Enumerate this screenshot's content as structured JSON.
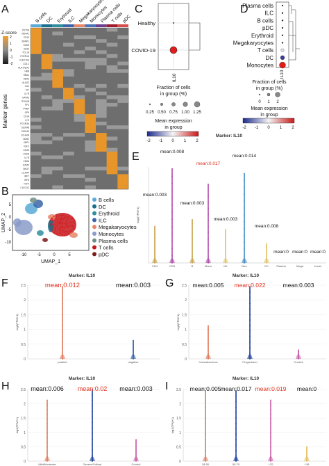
{
  "panels": {
    "A": {
      "letter": "A",
      "col_labels": [
        "B cells",
        "DC",
        "Erythroid",
        "ILC",
        "Megakaryocytes",
        "Monocytes",
        "Plasma cells",
        "T cells",
        "pDC"
      ],
      "col_colors": [
        "#5aa9d6",
        "#1a6f8c",
        "#2e8f9e",
        "#3b65a8",
        "#e8866a",
        "#4a74b8",
        "#6f3f8f",
        "#a01c2c",
        "#d94c4c"
      ],
      "zscore_label": "Z-score",
      "zscore_ticks": [
        "2",
        "1",
        "0",
        "-1",
        "-2"
      ],
      "row_axis_label": "Marker genes",
      "gene_labels": [
        "CD79A",
        "MS4A1",
        "CD19",
        "BANK1",
        "IGHM",
        "CD22",
        "TCL1A",
        "FCER1A",
        "CLEC10A",
        "CD1C",
        "HLA-DQA1",
        "HBB",
        "HBA1",
        "HBA2",
        "ALAS2",
        "CA1",
        "KIT",
        "IL7R",
        "GATA3",
        "ITGA2B",
        "PF4",
        "PPBP",
        "GP9",
        "CD14",
        "LYZ",
        "FCGR3A",
        "S100A8",
        "S100A9",
        "JCHAIN",
        "MZB1",
        "XBP1",
        "IGKC",
        "CD3E",
        "CD3D",
        "IL7R",
        "CD8A",
        "GZMK",
        "NKG7",
        "LILRA4",
        "IRF7",
        "IRF8",
        "TCF4",
        "CLEC4C"
      ]
    },
    "B": {
      "letter": "B",
      "legend": [
        "B cells",
        "DC",
        "Erythroid",
        "ILC",
        "Megakaryocytes",
        "Monocytes",
        "Plasma cells",
        "T cells",
        "pDC"
      ],
      "legend_colors": [
        "#5aa9d6",
        "#1a6f8c",
        "#2e8f9e",
        "#3b65a8",
        "#e8866a",
        "#8a9bc8",
        "#6f8f86",
        "#c6161c",
        "#7c1a1a"
      ],
      "xlabel": "UMAP_1",
      "ylabel": "UMAP_2",
      "xticks": [
        "-10",
        "-5",
        "0",
        "5"
      ],
      "yticks": [
        "5",
        "0",
        "-5",
        "-10"
      ]
    },
    "C": {
      "letter": "C",
      "rows": [
        "Healthy",
        "COVID-19"
      ],
      "gene": "IL10",
      "size_title": "Fraction of cells\nin group (%)",
      "size_ticks": [
        "0.25",
        "0.50",
        "0.75",
        "1.00",
        "1.25"
      ],
      "color_title": "Mean expression\nin group",
      "color_ticks": [
        "-2",
        "-1",
        "0",
        "1",
        "2"
      ]
    },
    "D": {
      "letter": "D",
      "rows": [
        "Plasma cells",
        "ILC",
        "B cells",
        "pDC",
        "Erythroid",
        "Megakaryocytes",
        "T cells",
        "DC",
        "Monocytes"
      ],
      "gene": "IL10",
      "size_title": "Fraction of cells\nin group (%)",
      "size_ticks": [
        "0",
        "1",
        "2"
      ],
      "color_title": "Mean expression\nin group",
      "color_ticks": [
        "-2",
        "-1",
        "0",
        "1",
        "2"
      ]
    },
    "E": {
      "letter": "E",
      "title": "Marker: IL10",
      "ylabel": "log2(TPM+1)",
      "categories": [
        "CD4",
        "CD8",
        "B",
        "Mono",
        "NK",
        "Neu",
        "DC",
        "Plasma",
        "Mega",
        "Invari"
      ],
      "means": [
        "mean:0.003",
        "mean:0.008",
        "mean:0.003",
        "mean:0.017",
        "mean:0.003",
        "mean:0.014",
        "mean:0.008",
        "mean:0",
        "mean:0",
        "mean:0"
      ],
      "highlight_index": 3
    },
    "F": {
      "letter": "F",
      "title": "Marker: IL10",
      "ylabel": "log2(TPM+1)",
      "yticks": [
        "2.5",
        "2",
        "1.5",
        "1",
        "0.5",
        "0"
      ],
      "categories": [
        "positive",
        "negative"
      ],
      "means": [
        "mean:0.012",
        "mean:0.003"
      ],
      "highlight_index": 0
    },
    "G": {
      "letter": "G",
      "title": "Marker: IL10",
      "ylabel": "log2(TPM+1)",
      "yticks": [
        "2.5",
        "2",
        "1.5",
        "1",
        "0.5",
        "0"
      ],
      "categories": [
        "Convalescence",
        "Progression",
        "Control"
      ],
      "means": [
        "mean:0.005",
        "mean:0.022",
        "mean:0.003"
      ],
      "highlight_index": 1
    },
    "H": {
      "letter": "H",
      "title": "Marker: IL10",
      "ylabel": "log2(TPM+1)",
      "yticks": [
        "2.5",
        "2",
        "1.5",
        "1",
        "0.5",
        "0"
      ],
      "categories": [
        "Mild/Moderate",
        "Severe/Critical",
        "Control"
      ],
      "means": [
        "mean:0.006",
        "mean:0.02",
        "mean:0.003"
      ],
      "highlight_index": 1
    },
    "I": {
      "letter": "I",
      "title": "Marker: IL10",
      "ylabel": "log2(TPM+1)",
      "yticks": [
        "2.5",
        "2",
        "1.5",
        "1",
        "0.5",
        "0"
      ],
      "categories": [
        "18-50",
        "50-70",
        ">70",
        "<18"
      ],
      "means": [
        "mean:0.005",
        "mean:0.017",
        "mean:0.019",
        "mean:0"
      ],
      "highlight_index": 2
    }
  },
  "colors": {
    "highlight": "#e0301e",
    "normal_text": "#111111",
    "heat_high": "#f0a030",
    "heat_low": "#7a7a7a"
  }
}
